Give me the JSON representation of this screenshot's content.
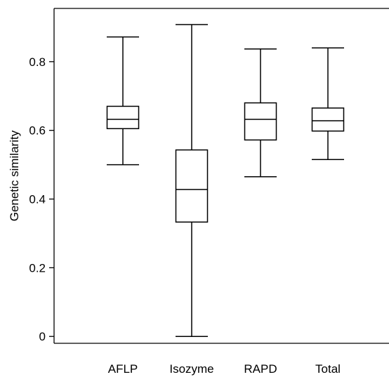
{
  "chart_data": {
    "type": "box",
    "title": "",
    "xlabel": "",
    "ylabel": "Genetic similarity",
    "ylim": [
      -0.02,
      0.955
    ],
    "yticks": [
      0,
      0.2,
      0.4,
      0.6,
      0.8
    ],
    "ytick_labels": [
      "0",
      "0.2",
      "0.4",
      "0.6",
      "0.8"
    ],
    "grid": false,
    "categories": [
      "AFLP",
      "Isozyme",
      "RAPD",
      "Total"
    ],
    "boxes": [
      {
        "category": "AFLP",
        "min": 0.5,
        "q1": 0.605,
        "median": 0.632,
        "q3": 0.67,
        "max": 0.872
      },
      {
        "category": "Isozyme",
        "min": 0.0,
        "q1": 0.333,
        "median": 0.428,
        "q3": 0.543,
        "max": 0.908
      },
      {
        "category": "RAPD",
        "min": 0.465,
        "q1": 0.572,
        "median": 0.632,
        "q3": 0.68,
        "max": 0.837
      },
      {
        "category": "Total",
        "min": 0.515,
        "q1": 0.598,
        "median": 0.628,
        "q3": 0.665,
        "max": 0.84
      }
    ]
  }
}
